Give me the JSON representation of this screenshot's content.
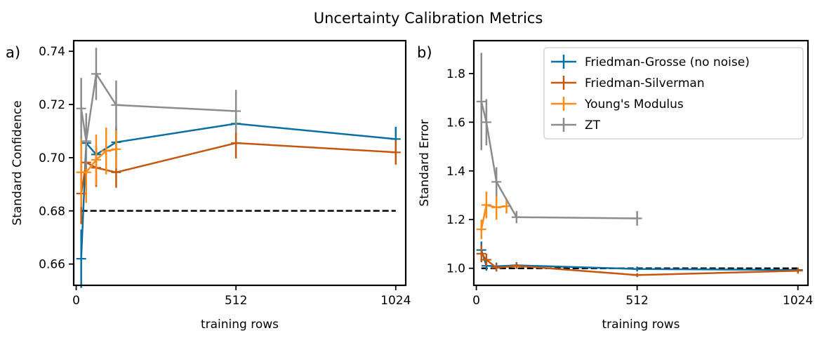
{
  "figure": {
    "title": "Uncertainty Calibration Metrics"
  },
  "legend": [
    {
      "label": "Friedman-Grosse (no noise)",
      "color": "#0a6fa2"
    },
    {
      "label": "Friedman-Silverman",
      "color": "#c45710"
    },
    {
      "label": "Young's Modulus",
      "color": "#ff8c1a"
    },
    {
      "label": "ZT",
      "color": "#8c8c8c"
    }
  ],
  "chart_data": [
    {
      "panel_label": "a)",
      "type": "line",
      "xlabel": "training rows",
      "ylabel": "Standard Confidence",
      "xlim": [
        -8,
        1056
      ],
      "ylim": [
        0.652,
        0.744
      ],
      "xticks": [
        0,
        512,
        1024
      ],
      "xtick_labels": [
        "0",
        "512",
        "1024"
      ],
      "yticks": [
        0.66,
        0.68,
        0.7,
        0.72,
        0.74
      ],
      "ytick_labels": [
        "0.66",
        "0.68",
        "0.70",
        "0.72",
        "0.74"
      ],
      "reference_line": {
        "y": 0.68,
        "x_range": [
          16,
          1024
        ],
        "style": "dashed",
        "color": "#000000"
      },
      "series": [
        {
          "name": "Friedman-Grosse (no noise)",
          "color": "#0a6fa2",
          "x": [
            16,
            32,
            64,
            128,
            512,
            1024
          ],
          "y": [
            0.662,
            0.7055,
            0.7012,
            0.7058,
            0.7128,
            0.707
          ],
          "yerr": [
            0.011,
            0.0042,
            0.0032,
            0.0058,
            0.0028,
            0.0046
          ]
        },
        {
          "name": "Friedman-Silverman",
          "color": "#c45710",
          "x": [
            16,
            32,
            64,
            128,
            512,
            1024
          ],
          "y": [
            0.6865,
            0.6982,
            0.6962,
            0.6945,
            0.7055,
            0.702
          ],
          "yerr": [
            0.0115,
            0.0085,
            0.0072,
            0.0058,
            0.0058,
            0.0046
          ]
        },
        {
          "name": "Young's Modulus",
          "color": "#ff8c1a",
          "x": [
            16,
            32,
            64,
            96,
            128
          ],
          "y": [
            0.6945,
            0.6945,
            0.6992,
            0.7025,
            0.7032
          ],
          "yerr": [
            0.013,
            0.0115,
            0.0095,
            0.0088,
            0.0072
          ]
        },
        {
          "name": "ZT",
          "color": "#8c8c8c",
          "x": [
            16,
            32,
            64,
            128,
            512
          ],
          "y": [
            0.7185,
            0.7062,
            0.7315,
            0.7198,
            0.7175
          ],
          "yerr": [
            0.0115,
            0.0105,
            0.0098,
            0.0092,
            0.008
          ]
        }
      ]
    },
    {
      "panel_label": "b)",
      "type": "line",
      "xlabel": "training rows",
      "ylabel": "Standard Error",
      "xlim": [
        -8,
        1056
      ],
      "ylim": [
        0.93,
        1.935
      ],
      "xticks": [
        0,
        512,
        1024
      ],
      "xtick_labels": [
        "0",
        "512",
        "1024"
      ],
      "yticks": [
        1.0,
        1.2,
        1.4,
        1.6,
        1.8
      ],
      "ytick_labels": [
        "1.0",
        "1.2",
        "1.4",
        "1.6",
        "1.8"
      ],
      "reference_line": {
        "y": 1.0,
        "x_range": [
          16,
          1024
        ],
        "style": "dashed",
        "color": "#000000"
      },
      "series": [
        {
          "name": "Friedman-Grosse (no noise)",
          "color": "#0a6fa2",
          "x": [
            16,
            32,
            64,
            128,
            512,
            1024
          ],
          "y": [
            1.075,
            1.01,
            1.008,
            1.012,
            0.997,
            0.993
          ],
          "yerr": [
            0.035,
            0.02,
            0.015,
            0.013,
            0.01,
            0.008
          ]
        },
        {
          "name": "Friedman-Silverman",
          "color": "#c45710",
          "x": [
            16,
            32,
            64,
            128,
            512,
            1024
          ],
          "y": [
            1.06,
            1.035,
            1.002,
            1.01,
            0.972,
            0.99
          ],
          "yerr": [
            0.035,
            0.025,
            0.015,
            0.012,
            0.008,
            0.012
          ]
        },
        {
          "name": "Young's Modulus",
          "color": "#ff8c1a",
          "x": [
            16,
            32,
            64,
            96
          ],
          "y": [
            1.16,
            1.26,
            1.25,
            1.255
          ],
          "yerr": [
            0.04,
            0.055,
            0.05,
            0.03
          ]
        },
        {
          "name": "ZT",
          "color": "#8c8c8c",
          "x": [
            16,
            32,
            64,
            128,
            512
          ],
          "y": [
            1.685,
            1.6,
            1.355,
            1.21,
            1.205
          ],
          "yerr": [
            0.2,
            0.095,
            0.06,
            0.025,
            0.03
          ]
        }
      ]
    }
  ]
}
